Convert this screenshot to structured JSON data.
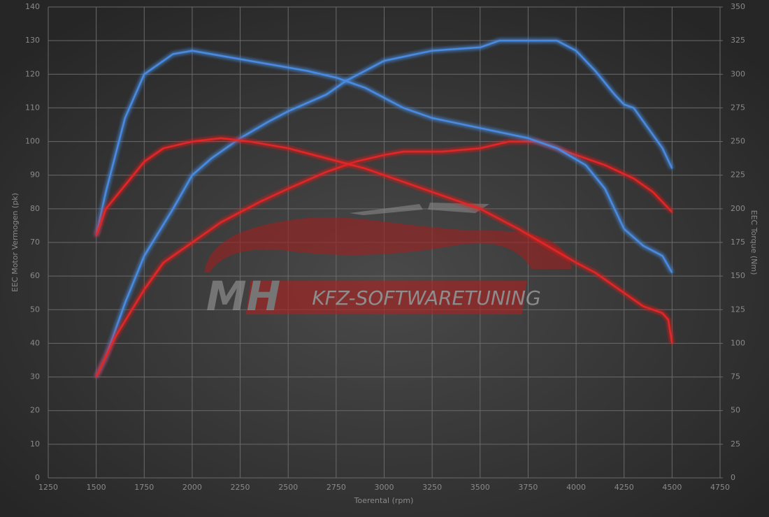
{
  "chart_data": {
    "type": "line",
    "xlabel": "Toerental (rpm)",
    "ylabel": "EEC Motor Vermogen (pk)",
    "y2label": "EEC Torque (Nm)",
    "annotations": [
      "MH",
      "KFZ-SOFTWARETUNING"
    ],
    "xlim": [
      1250,
      4750
    ],
    "xticks": [
      1250,
      1500,
      1750,
      2000,
      2250,
      2500,
      2750,
      3000,
      3250,
      3500,
      3750,
      4000,
      4250,
      4500,
      4750
    ],
    "ylim": [
      0,
      140
    ],
    "yticks": [
      0,
      10,
      20,
      30,
      40,
      50,
      60,
      70,
      80,
      90,
      100,
      110,
      120,
      130,
      140
    ],
    "y2lim": [
      0,
      350
    ],
    "y2ticks": [
      0,
      25,
      50,
      75,
      100,
      125,
      150,
      175,
      200,
      225,
      250,
      275,
      300,
      325,
      350
    ],
    "grid": true,
    "series": [
      {
        "color": "#4a8be0",
        "x": [
          1500,
          1550,
          1600,
          1650,
          1750,
          1900,
          2000,
          2100,
          2250,
          2400,
          2500,
          2700,
          2800,
          3000,
          3250,
          3500,
          3600,
          3750,
          3900,
          4000,
          4100,
          4200,
          4250,
          4300,
          4350,
          4450,
          4500
        ],
        "values": [
          30,
          36,
          44,
          52,
          66,
          80,
          90,
          95,
          101,
          106,
          109,
          114,
          118,
          124,
          127,
          128,
          130,
          130,
          130,
          127,
          121,
          114,
          111,
          110,
          106,
          98,
          92
        ]
      },
      {
        "color": "#e02828",
        "x": [
          1500,
          1600,
          1750,
          1850,
          2000,
          2150,
          2350,
          2500,
          2700,
          2850,
          3000,
          3100,
          3300,
          3500,
          3650,
          3800,
          3900,
          4000,
          4150,
          4300,
          4400,
          4500
        ],
        "values": [
          30,
          42,
          56,
          64,
          70,
          76,
          82,
          86,
          91,
          94,
          96,
          97,
          97,
          98,
          100,
          100,
          98,
          96,
          93,
          89,
          85,
          79
        ]
      },
      {
        "color": "#4a8be0",
        "axis": "y2",
        "x": [
          1500,
          1550,
          1650,
          1750,
          1900,
          2000,
          2200,
          2400,
          2600,
          2750,
          2900,
          3000,
          3100,
          3250,
          3500,
          3750,
          3900,
          4050,
          4150,
          4250,
          4350,
          4450,
          4500
        ],
        "values": [
          180,
          212.5,
          267.5,
          300,
          315,
          317.5,
          312.5,
          307.5,
          302.5,
          297.5,
          290,
          282.5,
          275,
          267.5,
          260,
          252.5,
          245,
          232.5,
          215,
          185,
          172.5,
          165,
          152.5
        ]
      },
      {
        "color": "#e02828",
        "axis": "y2",
        "x": [
          1500,
          1550,
          1650,
          1750,
          1850,
          2000,
          2150,
          2300,
          2500,
          2700,
          2900,
          3100,
          3300,
          3500,
          3700,
          3850,
          4000,
          4100,
          4250,
          4350,
          4450,
          4480,
          4500
        ],
        "values": [
          180,
          200,
          217.5,
          235,
          245,
          250,
          252.5,
          250,
          245,
          237.5,
          230,
          220,
          210,
          200,
          185,
          172.5,
          160,
          152.5,
          137.5,
          127.5,
          122.5,
          117.5,
          100
        ]
      }
    ]
  }
}
